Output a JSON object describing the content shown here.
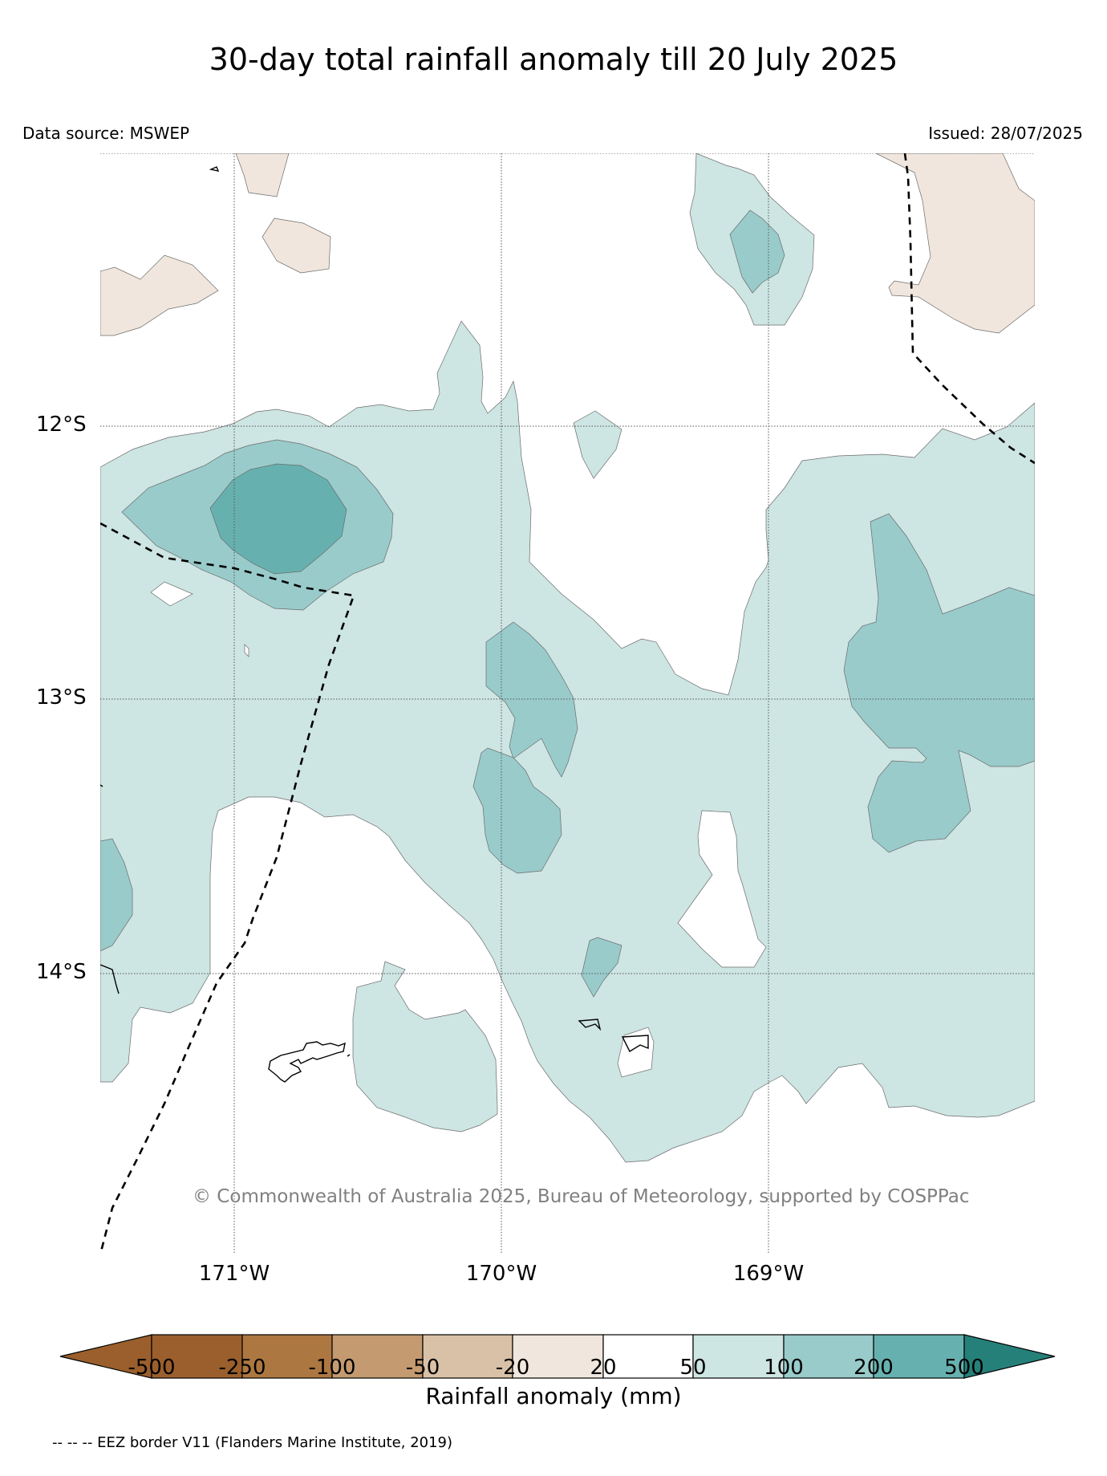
{
  "title": "30-day total rainfall anomaly till 20 July 2025",
  "data_source": "Data source: MSWEP",
  "issued": "Issued: 28/07/2025",
  "latitude_labels": [
    "12°S",
    "13°S",
    "14°S"
  ],
  "longitude_labels": [
    "171°W",
    "170°W",
    "169°W"
  ],
  "copyright": "© Commonwealth of Australia 2025, Bureau of Meteorology, supported by COSPPac",
  "colorbar": {
    "label": "Rainfall anomaly (mm)",
    "ticks": [
      "-500",
      "-250",
      "-100",
      "-50",
      "-20",
      "20",
      "50",
      "100",
      "200",
      "500"
    ],
    "colors": [
      "#9a5f2c",
      "#ad7741",
      "#c49a70",
      "#d9c1a7",
      "#f0e6dd",
      "#ffffff",
      "#cde5e3",
      "#99cbcb",
      "#66b1b0",
      "#339a95"
    ],
    "extend_low_color": "#9a5f2c",
    "extend_high_color": "#26807a"
  },
  "eez_note": "-- -- -- EEZ border V11 (Flanders Marine Institute, 2019)",
  "map_colors": {
    "dry": "#f0e6dd",
    "light_wet": "#cde5e3",
    "medium_wet": "#99cbcb",
    "heavy_wet": "#66b1b0"
  }
}
